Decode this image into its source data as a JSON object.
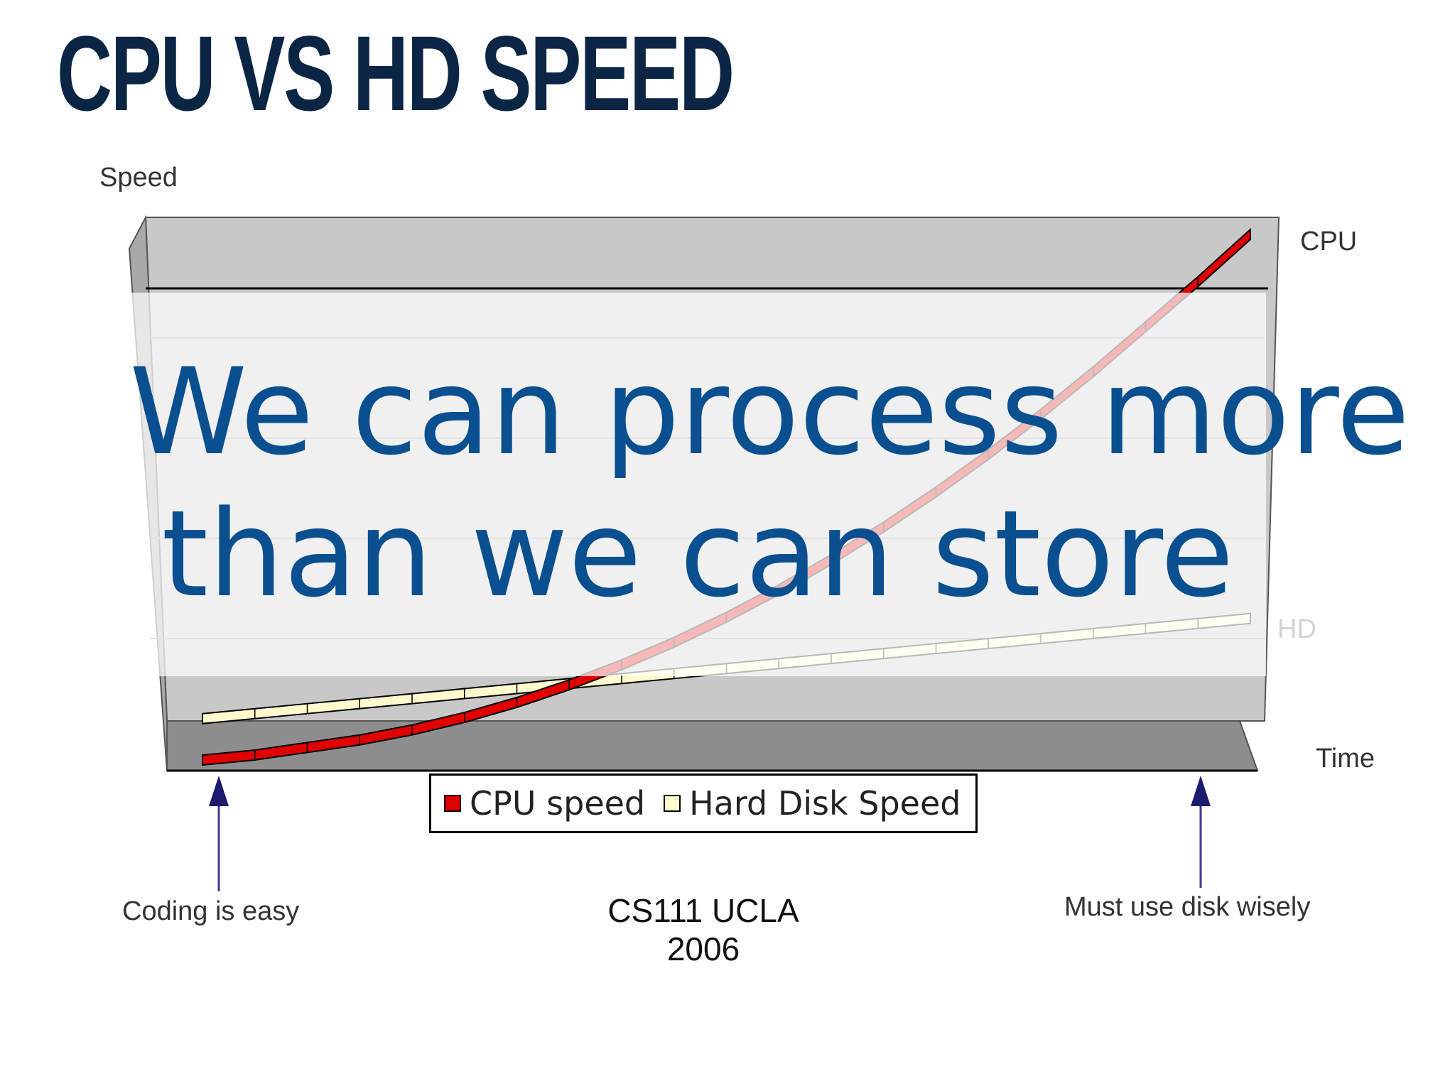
{
  "slide": {
    "title": "CPU VS HD SPEED",
    "overlay_line1": "We can process more",
    "overlay_line2": "than we can store",
    "footer": "CS111 UCLA 2006"
  },
  "chart_data": {
    "type": "line",
    "ylabel": "Speed",
    "xlabel": "Time",
    "x": [
      0,
      1,
      2,
      3,
      4,
      5,
      6,
      7,
      8,
      9,
      10,
      11,
      12,
      13,
      14,
      15,
      16,
      17,
      18,
      19,
      20
    ],
    "ylim": [
      0,
      100
    ],
    "series": [
      {
        "name": "CPU speed",
        "end_label": "CPU",
        "color": "#e00000",
        "values": [
          0,
          1,
          2.5,
          4,
          6,
          8.5,
          11.5,
          15,
          19,
          23.5,
          28.5,
          34,
          40,
          46.5,
          53.5,
          61,
          69,
          77.5,
          86.5,
          95.5,
          105
        ]
      },
      {
        "name": "Hard Disk Speed",
        "end_label": "HD",
        "color": "#fffacd",
        "values": [
          4,
          5,
          6,
          7,
          8,
          9,
          10,
          11,
          12,
          13,
          14,
          15,
          16,
          17,
          18,
          19,
          20,
          21,
          22,
          23,
          24
        ]
      }
    ],
    "annotations": [
      {
        "text": "Coding is easy",
        "x": 0
      },
      {
        "text": "Must use disk wisely",
        "x": 19
      }
    ],
    "legend_position": "bottom"
  }
}
